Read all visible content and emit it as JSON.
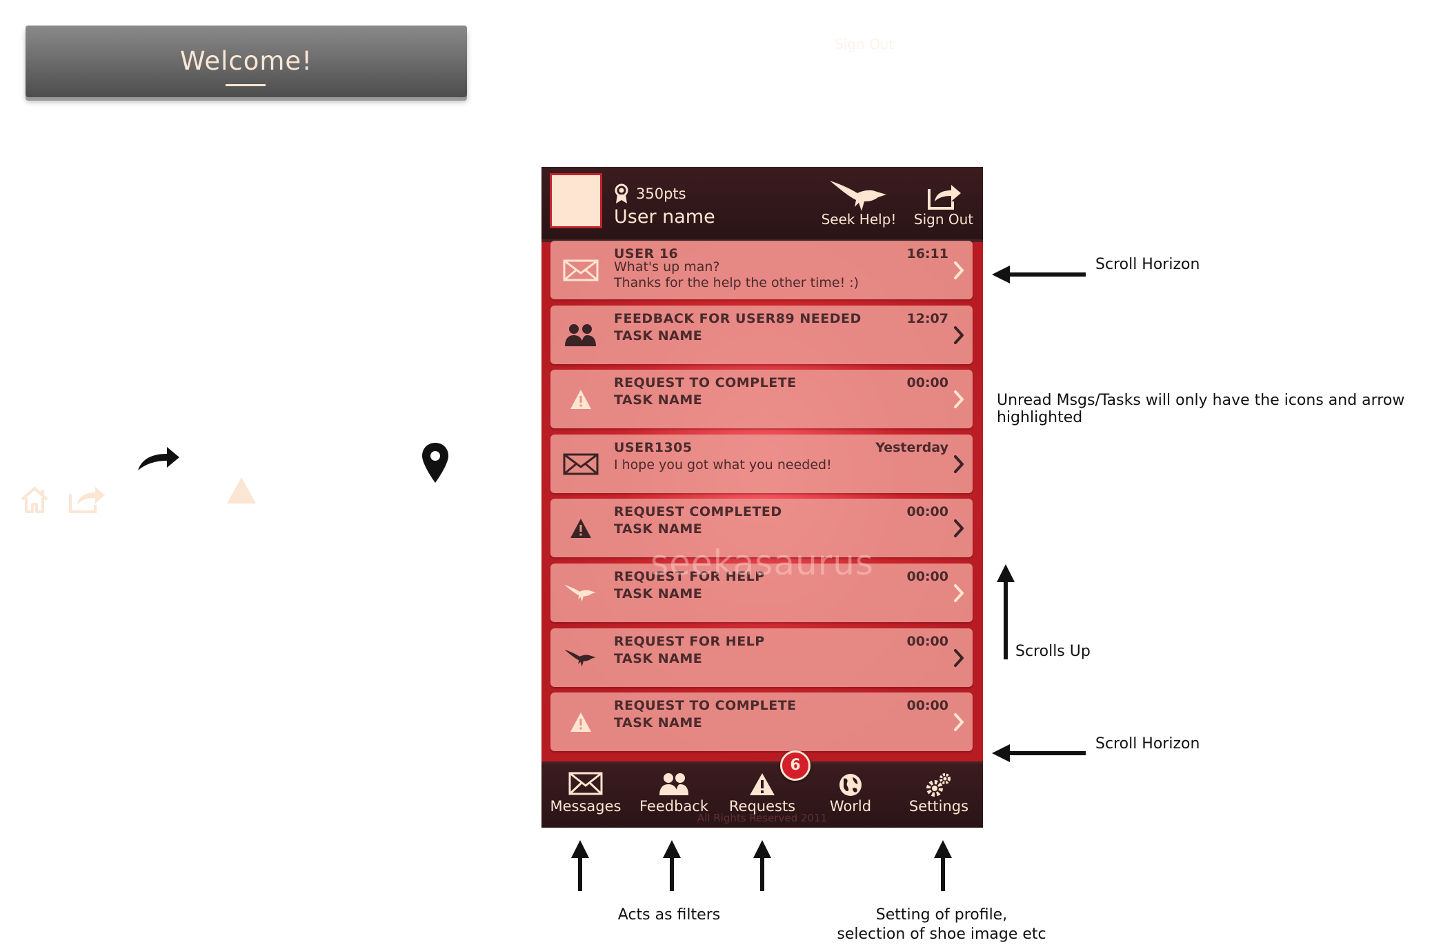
{
  "welcome": {
    "title": "Welcome!"
  },
  "top_link": {
    "sign_out": "Sign Out"
  },
  "header": {
    "points": "350pts",
    "username": "User name",
    "seek_help_label": "Seek Help!",
    "sign_out_label": "Sign Out"
  },
  "list": {
    "items": [
      {
        "icon": "envelope-open-icon",
        "title": "USER 16",
        "time": "16:11",
        "line2": "What's up man?",
        "line3": "Thanks for the help the other time! :)",
        "highlighted": false
      },
      {
        "icon": "users-icon",
        "title": "FEEDBACK FOR USER89 NEEDED",
        "time": "12:07",
        "line2": "TASK NAME",
        "highlighted": true
      },
      {
        "icon": "warning-icon",
        "title": "REQUEST TO COMPLETE",
        "time": "00:00",
        "line2": "TASK NAME",
        "highlighted": false
      },
      {
        "icon": "envelope-icon",
        "title": "USER1305",
        "time": "Yesterday",
        "line2": "I hope you got what you needed!",
        "highlighted": true
      },
      {
        "icon": "warning-icon",
        "title": "REQUEST COMPLETED",
        "time": "00:00",
        "line2": "TASK NAME",
        "highlighted": true
      },
      {
        "icon": "seekasaurus-icon",
        "title": "REQUEST FOR HELP",
        "time": "00:00",
        "line2": "TASK NAME",
        "highlighted": false
      },
      {
        "icon": "seekasaurus-icon",
        "title": "REQUEST FOR HELP",
        "time": "00:00",
        "line2": "TASK NAME",
        "highlighted": true
      },
      {
        "icon": "warning-icon",
        "title": "REQUEST TO COMPLETE",
        "time": "00:00",
        "line2": "TASK NAME",
        "highlighted": false
      }
    ]
  },
  "watermark": "seekasaurus",
  "bottom_nav": {
    "tabs": [
      {
        "label": "Messages",
        "icon": "envelope-icon"
      },
      {
        "label": "Feedback",
        "icon": "users-icon"
      },
      {
        "label": "Requests",
        "icon": "warning-icon"
      },
      {
        "label": "World",
        "icon": "globe-icon"
      },
      {
        "label": "Settings",
        "icon": "gears-icon"
      }
    ],
    "badge": "6",
    "copyright": "All Rights Reserved 2011"
  },
  "annotations": {
    "scroll_horizon_top": "Scroll Horizon",
    "unread_note": "Unread Msgs/Tasks will only have the icons and arrow highlighted",
    "scrolls_up": "Scrolls Up",
    "scroll_horizon_bottom": "Scroll Horizon",
    "acts_as_filters": "Acts as filters",
    "settings_line1": "Setting of profile,",
    "settings_line2": "selection of shoe image etc"
  },
  "colors": {
    "brand_red": "#b71c23",
    "dark_header": "#2f1719",
    "cream": "#fde5d2",
    "row_text": "#4a2a2c"
  }
}
